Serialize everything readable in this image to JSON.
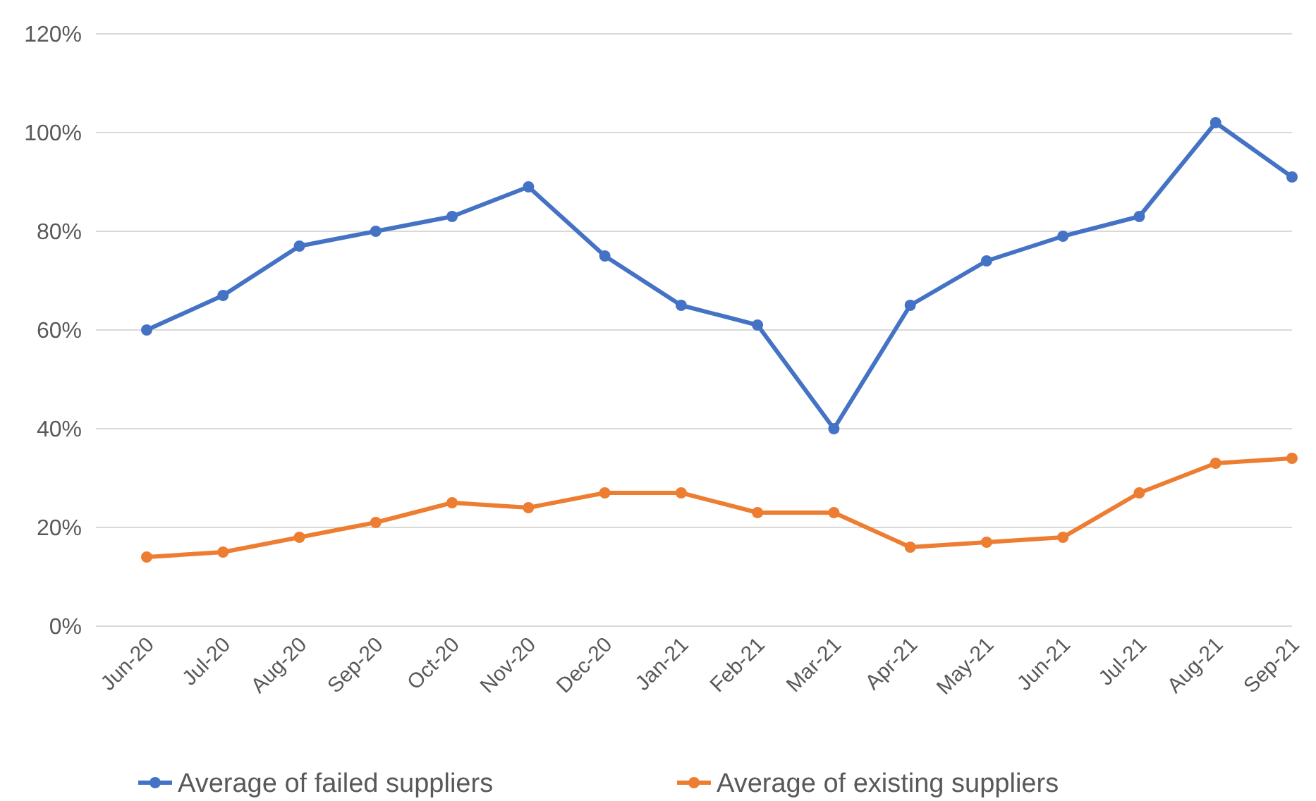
{
  "chart_data": {
    "type": "line",
    "categories": [
      "Jun-20",
      "Jul-20",
      "Aug-20",
      "Sep-20",
      "Oct-20",
      "Nov-20",
      "Dec-20",
      "Jan-21",
      "Feb-21",
      "Mar-21",
      "Apr-21",
      "May-21",
      "Jun-21",
      "Jul-21",
      "Aug-21",
      "Sep-21"
    ],
    "series": [
      {
        "name": "Average of failed suppliers",
        "color": "#4472c4",
        "values": [
          60,
          67,
          77,
          80,
          83,
          89,
          75,
          65,
          61,
          40,
          65,
          74,
          79,
          83,
          102,
          91
        ]
      },
      {
        "name": "Average of existing suppliers",
        "color": "#ed7d31",
        "values": [
          14,
          15,
          18,
          21,
          25,
          24,
          27,
          27,
          23,
          23,
          16,
          17,
          18,
          27,
          33,
          34
        ]
      }
    ],
    "ylim": [
      0,
      120
    ],
    "yticks": [
      {
        "value": 0,
        "label": "0%"
      },
      {
        "value": 20,
        "label": "20%"
      },
      {
        "value": 40,
        "label": "40%"
      },
      {
        "value": 60,
        "label": "60%"
      },
      {
        "value": 80,
        "label": "80%"
      },
      {
        "value": 100,
        "label": "100%"
      },
      {
        "value": 120,
        "label": "120%"
      }
    ],
    "grid": "y",
    "legend": "bottom",
    "marker": "circle",
    "line_style": "solid"
  }
}
